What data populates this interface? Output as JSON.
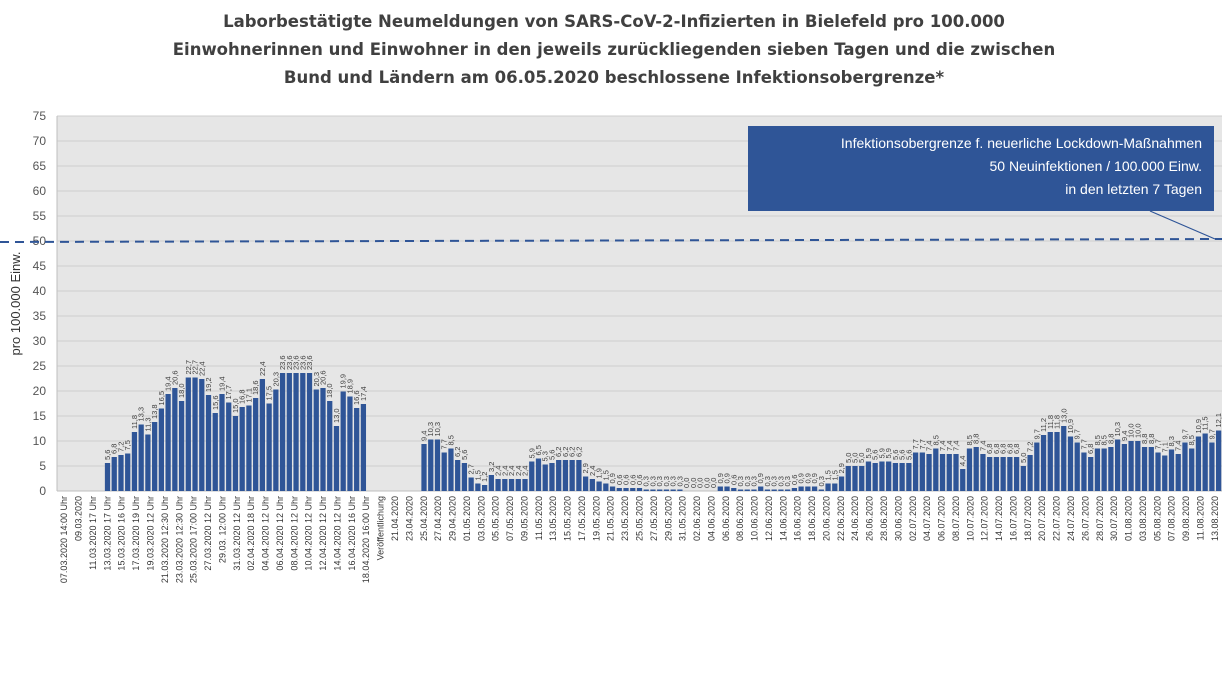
{
  "title_lines": [
    "Laborbestätigte Neumeldungen von SARS-CoV-2-Infizierten in Bielefeld pro 100.000",
    "Einwohnerinnen und Einwohner in den jeweils zurückliegenden sieben Tagen und die zwischen",
    "Bund und Ländern am 06.05.2020 beschlossene Infektionsobergrenze*"
  ],
  "annotation": {
    "lines": [
      "Infektionsobergrenze f. neuerliche Lockdown-Maßnahmen",
      "50 Neuinfektionen / 100.000 Einw.",
      "in den letzten 7 Tagen"
    ],
    "color": "#2f5597"
  },
  "chart_data": {
    "type": "bar",
    "title": "Laborbestätigte Neumeldungen von SARS-CoV-2-Infizierten in Bielefeld pro 100.000 Einwohnerinnen und Einwohner in den jeweils zurückliegenden sieben Tagen und die zwischen Bund und Ländern am 06.05.2020 beschlossene Infektionsobergrenze*",
    "ylabel": "pro 100.000 Einw.",
    "xlabel": "",
    "ylim": [
      0,
      75
    ],
    "yticks": [
      0,
      5,
      10,
      15,
      20,
      25,
      30,
      35,
      40,
      45,
      50,
      55,
      60,
      65,
      70,
      75
    ],
    "threshold": 50,
    "bar_color": "#2f5597",
    "plot_background": "#e6e6e6",
    "x_tick_labels": [
      "07.03.2020 14:00 Uhr",
      "09.03.2020",
      "11.03.2020 17 Uhr",
      "13.03.2020 17 Uhr",
      "15.03.2020 16 Uhr",
      "17.03.2020 19 Uhr",
      "19.03.2020 12 Uhr",
      "21.03.2020 12:30 Uhr",
      "23.03.2020 12:30 Uhr",
      "25.03.2020 17:00 Uhr",
      "27.03.2020 12 Uhr",
      "29.03. 12:00 Uhr",
      "31.03.2020 12 Uhr",
      "02.04.2020 18 Uhr",
      "04.04.2020 12 Uhr",
      "06.04.2020 12 Uhr",
      "08.04.2020 12 Uhr",
      "10.04.2020 12 Uhr",
      "12.04.2020 12 Uhr",
      "14.04.2020 12 Uhr",
      "16.04.2020 16 Uhr",
      "18.04.2020 16:00 Uhr",
      "Veröffentlichung",
      "21.04.2020",
      "23.04.2020",
      "25.04.2020",
      "27.04.2020",
      "29.04.2020",
      "01.05.2020",
      "03.05.2020",
      "05.05.2020",
      "07.05.2020",
      "09.05.2020",
      "11.05.2020",
      "13.05.2020",
      "15.05.2020",
      "17.05.2020",
      "19.05.2020",
      "21.05.2020",
      "23.05.2020",
      "25.05.2020",
      "27.05.2020",
      "29.05.2020",
      "31.05.2020",
      "02.06.2020",
      "04.06.2020",
      "06.06.2020",
      "08.06.2020",
      "10.06.2020",
      "12.06.2020",
      "14.06.2020",
      "16.06.2020",
      "18.06.2020",
      "20.06.2020",
      "22.06.2020",
      "24.06.2020",
      "26.06.2020",
      "28.06.2020",
      "30.06.2020",
      "02.07.2020",
      "04.07.2020",
      "06.07.2020",
      "08.07.2020",
      "10.07.2020",
      "12.07.2020",
      "14.07.2020",
      "16.07.2020",
      "18.07.2020",
      "20.07.2020",
      "22.07.2020",
      "24.07.2020",
      "26.07.2020",
      "28.07.2020",
      "30.07.2020",
      "01.08.2020",
      "03.08.2020",
      "05.08.2020",
      "07.08.2020",
      "09.08.2020",
      "11.08.2020",
      "13.08.2020"
    ],
    "values": [
      null,
      null,
      null,
      null,
      null,
      null,
      null,
      5.6,
      6.8,
      7.2,
      7.5,
      11.8,
      13.3,
      11.3,
      13.8,
      16.5,
      19.4,
      20.6,
      18.0,
      22.7,
      22.7,
      22.4,
      19.2,
      15.6,
      19.4,
      17.7,
      15.0,
      16.8,
      17.1,
      18.6,
      22.4,
      17.5,
      20.3,
      23.6,
      23.6,
      23.6,
      23.6,
      23.6,
      20.3,
      20.6,
      18.0,
      13.0,
      19.9,
      18.9,
      16.6,
      17.4,
      null,
      null,
      null,
      null,
      null,
      null,
      null,
      null,
      9.4,
      10.3,
      10.3,
      7.7,
      8.5,
      6.2,
      5.6,
      2.7,
      1.5,
      1.2,
      3.2,
      2.4,
      2.4,
      2.4,
      2.4,
      2.4,
      5.9,
      6.5,
      5.3,
      5.6,
      6.2,
      6.2,
      6.2,
      6.2,
      2.9,
      2.4,
      1.9,
      1.5,
      0.9,
      0.6,
      0.6,
      0.6,
      0.6,
      0.3,
      0.3,
      0.3,
      0.3,
      0.3,
      0.3,
      0.0,
      0.0,
      0.0,
      0.0,
      0.0,
      0.9,
      0.9,
      0.6,
      0.3,
      0.3,
      0.3,
      0.9,
      0.3,
      0.3,
      0.3,
      0.3,
      0.6,
      0.9,
      0.9,
      0.9,
      0.3,
      1.5,
      1.5,
      2.9,
      5.0,
      5.0,
      5.0,
      5.9,
      5.6,
      5.9,
      5.9,
      5.6,
      5.6,
      5.6,
      7.7,
      7.7,
      7.4,
      8.5,
      7.4,
      7.4,
      7.4,
      4.4,
      8.5,
      8.8,
      7.4,
      6.8,
      6.8,
      6.8,
      6.8,
      6.8,
      5.0,
      7.2,
      9.7,
      11.2,
      11.8,
      11.8,
      13.0,
      10.9,
      9.7,
      7.7,
      6.8,
      8.5,
      8.5,
      8.8,
      10.3,
      9.4,
      10.0,
      10.0,
      8.8,
      8.8,
      7.7,
      7.1,
      8.3,
      7.4,
      9.7,
      8.5,
      10.9,
      11.5,
      9.7,
      12.1
    ]
  }
}
